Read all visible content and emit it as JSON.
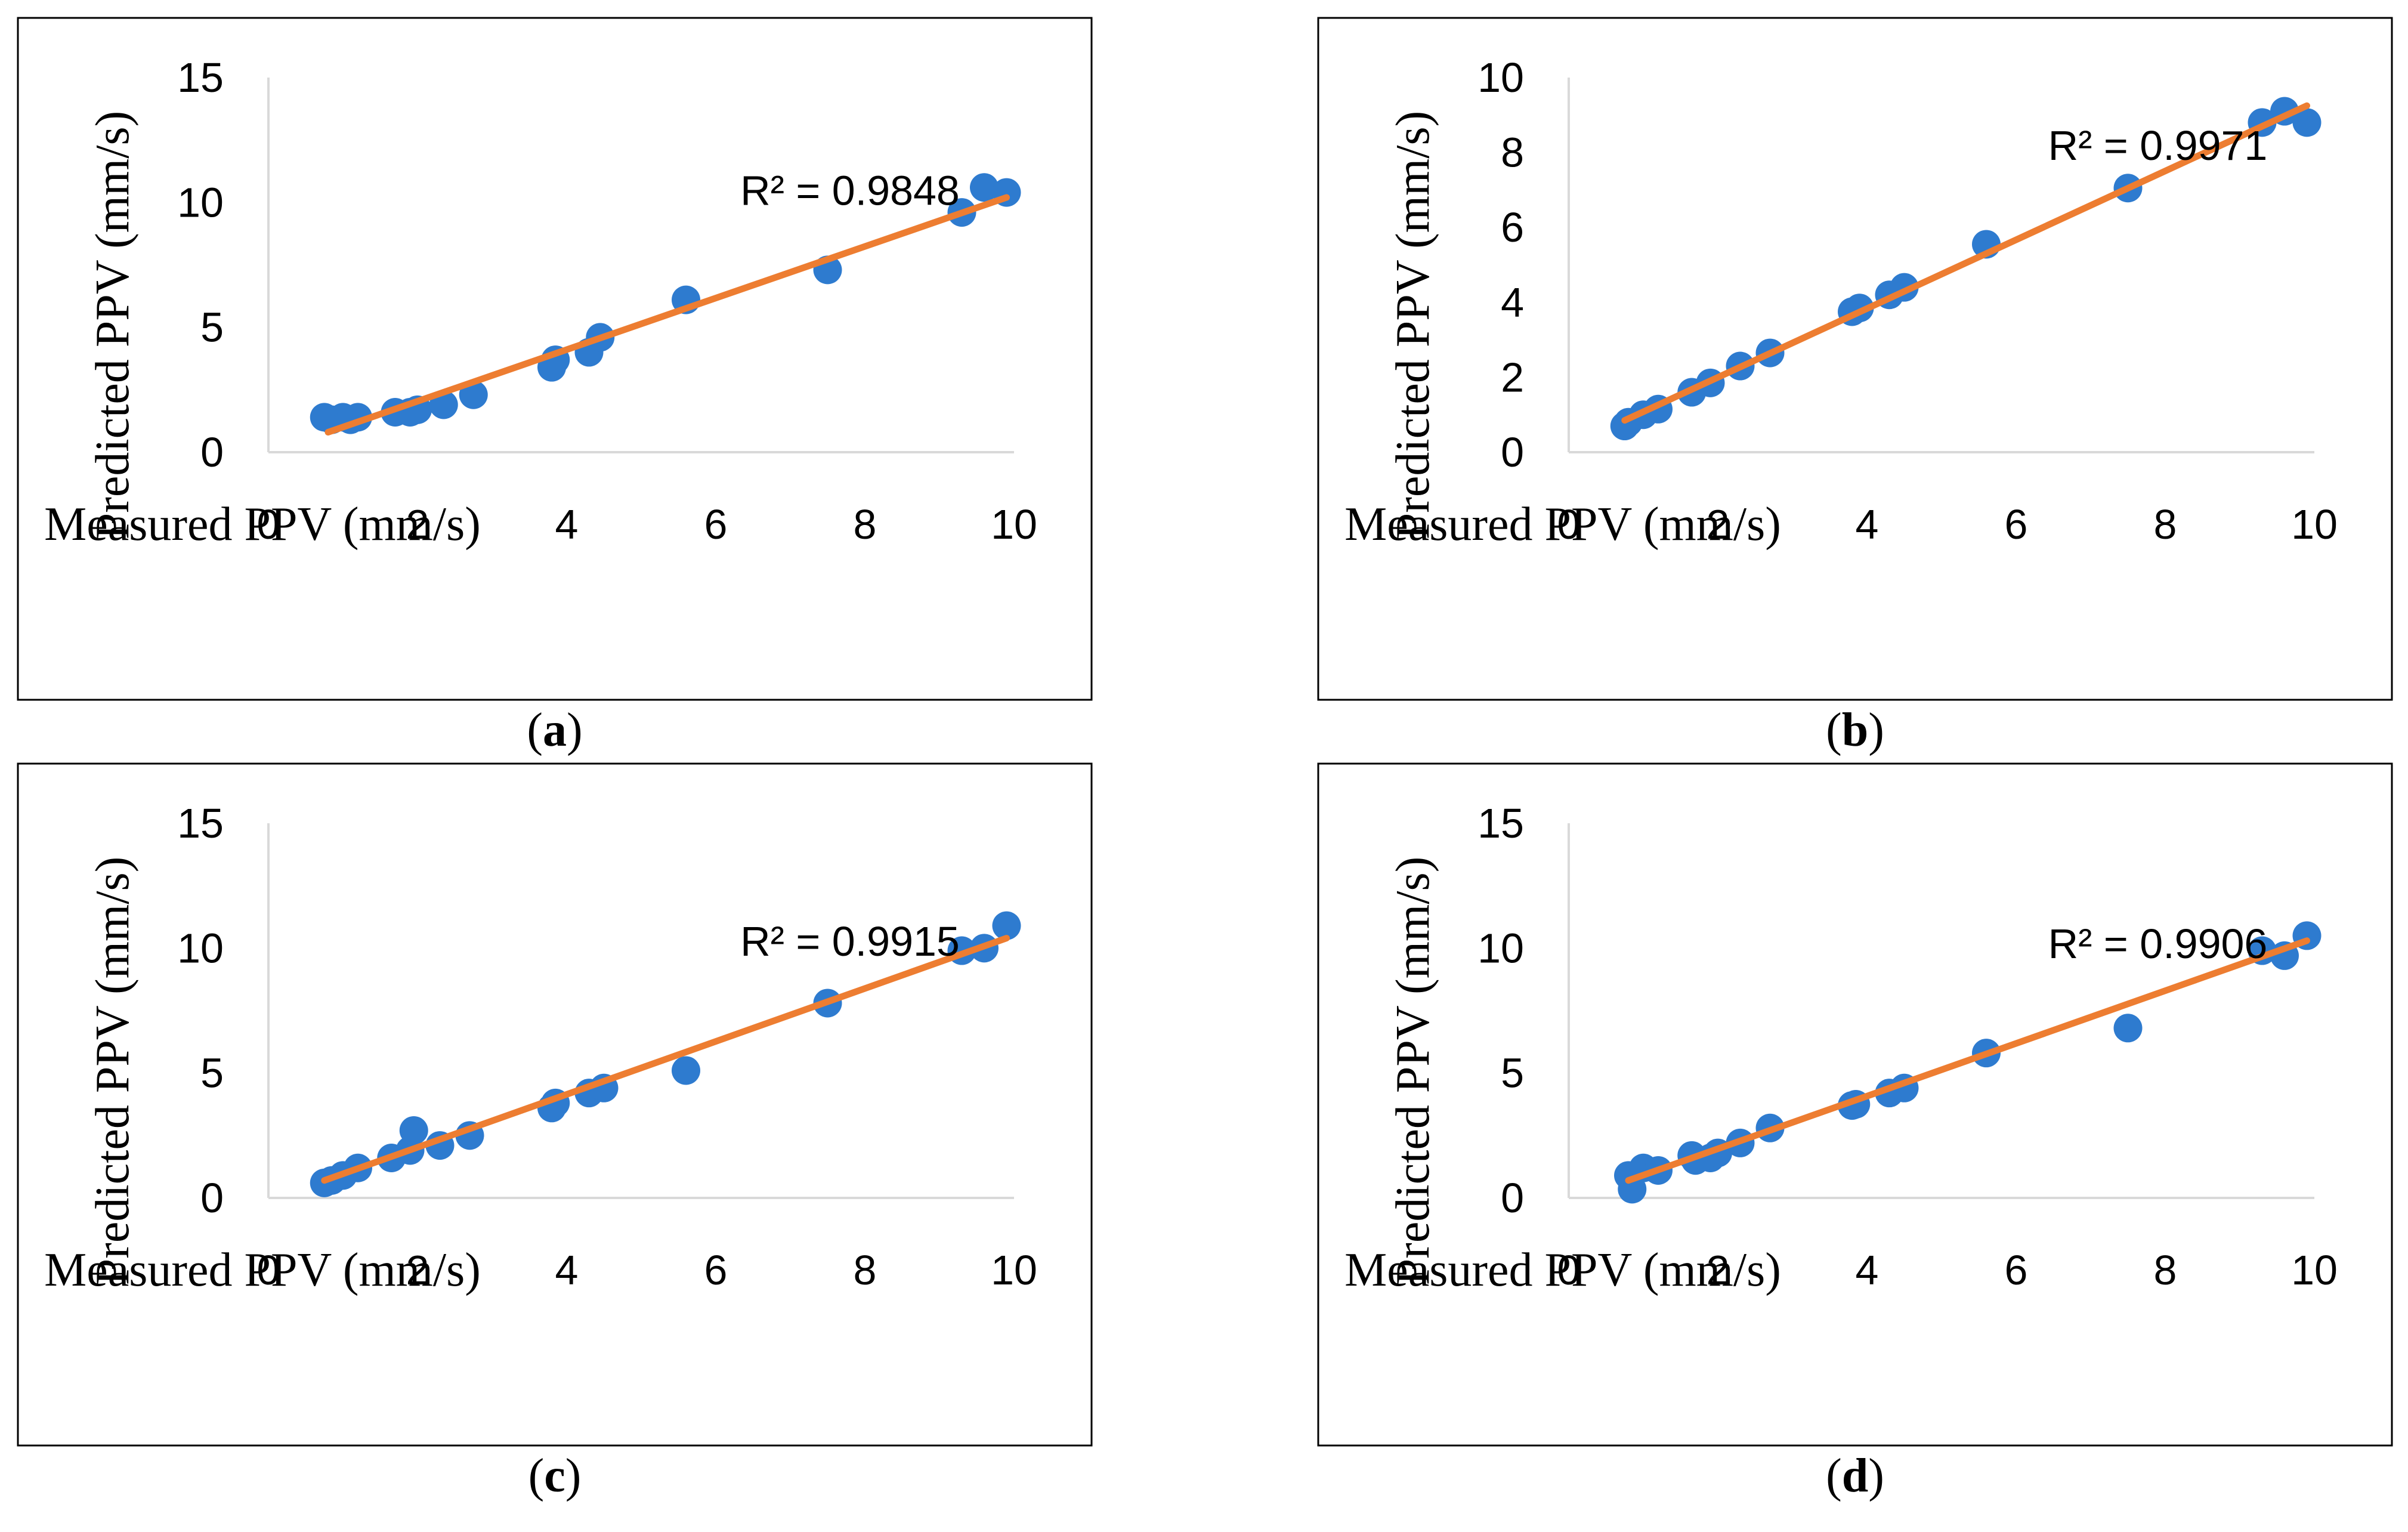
{
  "figure": {
    "background": "#ffffff",
    "border_color": "#000000",
    "axis_color": "#d9d9d9",
    "point_color": "#2e7bcf",
    "trendline_color": "#ed7d31"
  },
  "chart_data": [
    {
      "type": "scatter",
      "panel": "a",
      "caption": "(a)",
      "caption_letter": "a",
      "xlabel": "Measured PPV (mm/s)",
      "ylabel": "Predicted PPV (mm/s)",
      "xlim": [
        0,
        10
      ],
      "ylim": [
        0,
        15
      ],
      "xticks": [
        "0",
        "2",
        "4",
        "6",
        "8",
        "10"
      ],
      "yticks": [
        "0",
        "5",
        "10",
        "15"
      ],
      "xtick_values": [
        0,
        2,
        4,
        6,
        8,
        10
      ],
      "ytick_values": [
        0,
        5,
        10,
        15
      ],
      "r2_label": "R² = 0.9848",
      "r2_anchor": [
        7.8,
        9.9
      ],
      "trendline": {
        "x": [
          0.8,
          9.9
        ],
        "y": [
          0.8,
          10.2
        ]
      },
      "points": [
        {
          "x": 0.75,
          "y": 1.4
        },
        {
          "x": 0.85,
          "y": 1.3
        },
        {
          "x": 1.0,
          "y": 1.4
        },
        {
          "x": 1.1,
          "y": 1.3
        },
        {
          "x": 1.2,
          "y": 1.4
        },
        {
          "x": 1.7,
          "y": 1.6
        },
        {
          "x": 1.9,
          "y": 1.6
        },
        {
          "x": 2.0,
          "y": 1.7
        },
        {
          "x": 2.35,
          "y": 1.9
        },
        {
          "x": 2.75,
          "y": 2.3
        },
        {
          "x": 3.8,
          "y": 3.4
        },
        {
          "x": 3.85,
          "y": 3.7
        },
        {
          "x": 4.3,
          "y": 4.0
        },
        {
          "x": 4.45,
          "y": 4.6
        },
        {
          "x": 5.6,
          "y": 6.1
        },
        {
          "x": 7.5,
          "y": 7.3
        },
        {
          "x": 9.3,
          "y": 9.6
        },
        {
          "x": 9.6,
          "y": 10.6
        },
        {
          "x": 9.9,
          "y": 10.4
        }
      ]
    },
    {
      "type": "scatter",
      "panel": "b",
      "caption": "(b)",
      "caption_letter": "b",
      "xlabel": "Measured PPV (mm/s)",
      "ylabel": "Predicted PPV (mm/s)",
      "xlim": [
        0,
        10
      ],
      "ylim": [
        0,
        10
      ],
      "xticks": [
        "0",
        "2",
        "4",
        "6",
        "8",
        "10"
      ],
      "yticks": [
        "0",
        "2",
        "4",
        "6",
        "8",
        "10"
      ],
      "xtick_values": [
        0,
        2,
        4,
        6,
        8,
        10
      ],
      "ytick_values": [
        0,
        2,
        4,
        6,
        8,
        10
      ],
      "r2_label": "R² = 0.9971",
      "r2_anchor": [
        7.9,
        7.8
      ],
      "trendline": {
        "x": [
          0.75,
          9.9
        ],
        "y": [
          0.85,
          9.25
        ]
      },
      "points": [
        {
          "x": 0.75,
          "y": 0.7
        },
        {
          "x": 0.8,
          "y": 0.8
        },
        {
          "x": 1.0,
          "y": 1.0
        },
        {
          "x": 1.2,
          "y": 1.15
        },
        {
          "x": 1.65,
          "y": 1.6
        },
        {
          "x": 1.9,
          "y": 1.85
        },
        {
          "x": 2.3,
          "y": 2.3
        },
        {
          "x": 2.7,
          "y": 2.65
        },
        {
          "x": 3.8,
          "y": 3.75
        },
        {
          "x": 3.9,
          "y": 3.85
        },
        {
          "x": 4.3,
          "y": 4.2
        },
        {
          "x": 4.5,
          "y": 4.4
        },
        {
          "x": 5.6,
          "y": 5.55
        },
        {
          "x": 7.5,
          "y": 7.05
        },
        {
          "x": 9.3,
          "y": 8.8
        },
        {
          "x": 9.6,
          "y": 9.1
        },
        {
          "x": 9.9,
          "y": 8.8
        }
      ]
    },
    {
      "type": "scatter",
      "panel": "c",
      "caption": "(c)",
      "caption_letter": "c",
      "xlabel": "Measured PPV (mm/s)",
      "ylabel": "Predicted PPV (mm/s)",
      "xlim": [
        0,
        10
      ],
      "ylim": [
        0,
        15
      ],
      "xticks": [
        "0",
        "2",
        "4",
        "6",
        "8",
        "10"
      ],
      "yticks": [
        "0",
        "5",
        "10",
        "15"
      ],
      "xtick_values": [
        0,
        2,
        4,
        6,
        8,
        10
      ],
      "ytick_values": [
        0,
        5,
        10,
        15
      ],
      "r2_label": "R² = 0.9915",
      "r2_anchor": [
        7.8,
        9.7
      ],
      "trendline": {
        "x": [
          0.75,
          9.9
        ],
        "y": [
          0.7,
          10.4
        ]
      },
      "points": [
        {
          "x": 0.75,
          "y": 0.6
        },
        {
          "x": 0.85,
          "y": 0.7
        },
        {
          "x": 1.0,
          "y": 0.9
        },
        {
          "x": 1.2,
          "y": 1.2
        },
        {
          "x": 1.65,
          "y": 1.6
        },
        {
          "x": 1.9,
          "y": 1.9
        },
        {
          "x": 1.95,
          "y": 2.7
        },
        {
          "x": 2.3,
          "y": 2.1
        },
        {
          "x": 2.7,
          "y": 2.5
        },
        {
          "x": 3.8,
          "y": 3.6
        },
        {
          "x": 3.85,
          "y": 3.8
        },
        {
          "x": 4.3,
          "y": 4.2
        },
        {
          "x": 4.5,
          "y": 4.4
        },
        {
          "x": 5.6,
          "y": 5.1
        },
        {
          "x": 7.5,
          "y": 7.8
        },
        {
          "x": 9.3,
          "y": 9.9
        },
        {
          "x": 9.6,
          "y": 10.0
        },
        {
          "x": 9.9,
          "y": 10.9
        }
      ]
    },
    {
      "type": "scatter",
      "panel": "d",
      "caption": "(d)",
      "caption_letter": "d",
      "xlabel": "Measured PPV (mm/s)",
      "ylabel": "Predicted PPV (mm/s)",
      "xlim": [
        0,
        10
      ],
      "ylim": [
        0,
        15
      ],
      "xticks": [
        "0",
        "2",
        "4",
        "6",
        "8",
        "10"
      ],
      "yticks": [
        "0",
        "5",
        "10",
        "15"
      ],
      "xtick_values": [
        0,
        2,
        4,
        6,
        8,
        10
      ],
      "ytick_values": [
        0,
        5,
        10,
        15
      ],
      "r2_label": "R² = 0.9906",
      "r2_anchor": [
        7.9,
        9.6
      ],
      "trendline": {
        "x": [
          0.8,
          9.9
        ],
        "y": [
          0.7,
          10.3
        ]
      },
      "points": [
        {
          "x": 0.8,
          "y": 0.9
        },
        {
          "x": 0.85,
          "y": 0.35
        },
        {
          "x": 1.0,
          "y": 1.2
        },
        {
          "x": 1.2,
          "y": 1.1
        },
        {
          "x": 1.65,
          "y": 1.7
        },
        {
          "x": 1.7,
          "y": 1.5
        },
        {
          "x": 1.9,
          "y": 1.6
        },
        {
          "x": 2.0,
          "y": 1.8
        },
        {
          "x": 2.3,
          "y": 2.2
        },
        {
          "x": 2.7,
          "y": 2.8
        },
        {
          "x": 3.8,
          "y": 3.7
        },
        {
          "x": 3.85,
          "y": 3.75
        },
        {
          "x": 4.3,
          "y": 4.2
        },
        {
          "x": 4.5,
          "y": 4.4
        },
        {
          "x": 5.6,
          "y": 5.8
        },
        {
          "x": 7.5,
          "y": 6.8
        },
        {
          "x": 9.3,
          "y": 9.9
        },
        {
          "x": 9.6,
          "y": 9.7
        },
        {
          "x": 9.9,
          "y": 10.5
        }
      ]
    }
  ]
}
